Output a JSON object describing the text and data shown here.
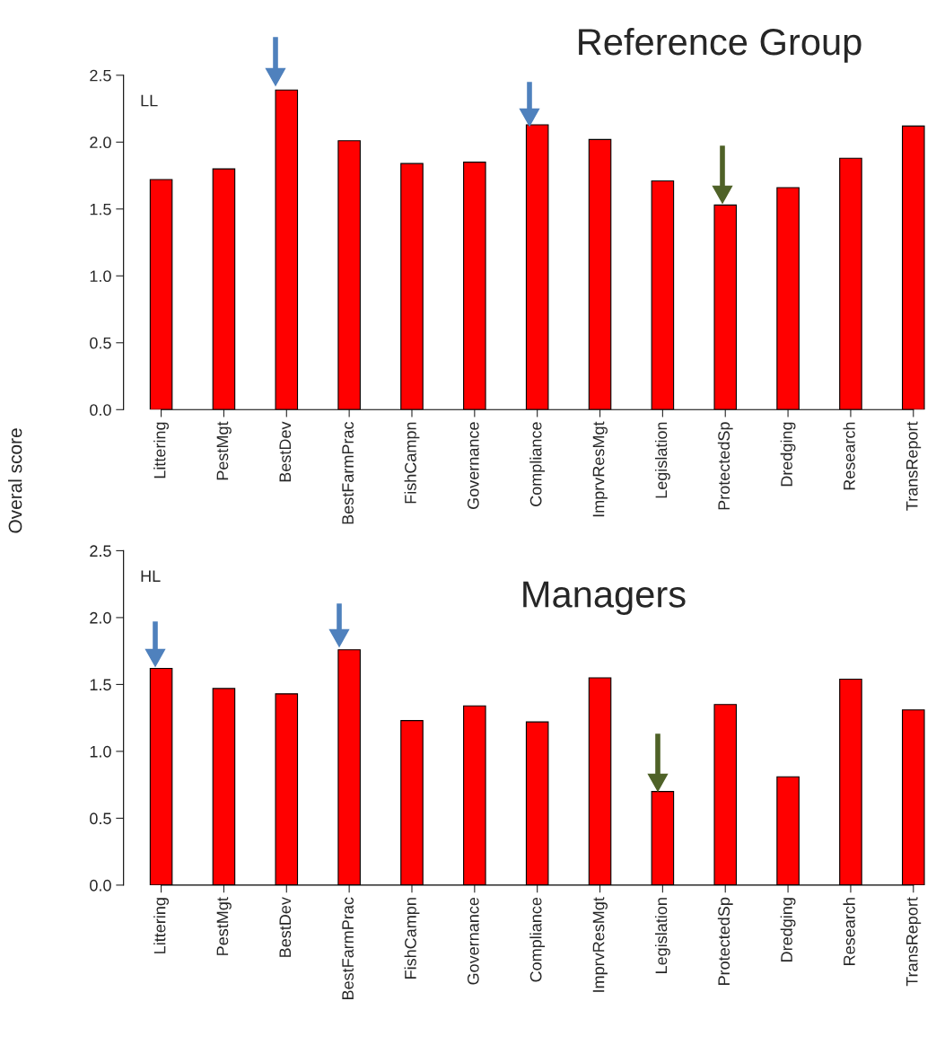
{
  "chart_data": [
    {
      "type": "bar",
      "title": "Reference Group",
      "ylabel": "Overal score",
      "categories": [
        "Littering",
        "PestMgt",
        "BestDev",
        "BestFarmPrac",
        "FishCampn",
        "Governance",
        "Compliance",
        "ImprvResMgt",
        "Legislation",
        "ProtectedSp",
        "Dredging",
        "Research",
        "TransReport"
      ],
      "series": [
        {
          "color": "#ff0000",
          "values": [
            1.72,
            1.8,
            2.39,
            2.01,
            1.84,
            1.85,
            2.13,
            2.02,
            1.71,
            1.53,
            1.66,
            1.88,
            2.12
          ]
        }
      ],
      "ylim": [
        0,
        2.5
      ],
      "yticks": [
        {
          "value": 0,
          "label": "0.0"
        },
        {
          "value": 0.5,
          "label": "0.5"
        },
        {
          "value": 1,
          "label": "1.0"
        },
        {
          "value": 1.5,
          "label": "1.5"
        },
        {
          "value": 2,
          "label": "2.0"
        },
        {
          "value": 2.5,
          "label": "2.5"
        }
      ],
      "grid": false,
      "legend": false,
      "annotations": [
        "LL"
      ]
    },
    {
      "type": "bar",
      "title": "Managers",
      "categories": [
        "Littering",
        "PestMgt",
        "BestDev",
        "BestFarmPrac",
        "FishCampn",
        "Governance",
        "Compliance",
        "ImprvResMgt",
        "Legislation",
        "ProtectedSp",
        "Dredging",
        "Research",
        "TransReport"
      ],
      "series": [
        {
          "color": "#ff0000",
          "values": [
            1.62,
            1.47,
            1.43,
            1.76,
            1.23,
            1.34,
            1.22,
            1.55,
            0.7,
            1.35,
            0.81,
            1.54,
            1.31
          ]
        }
      ],
      "ylim": [
        0,
        2.5
      ],
      "yticks": [
        {
          "value": 0,
          "label": "0.0"
        },
        {
          "value": 0.5,
          "label": "0.5"
        },
        {
          "value": 1,
          "label": "1.0"
        },
        {
          "value": 1.5,
          "label": "1.5"
        },
        {
          "value": 2,
          "label": "2.0"
        },
        {
          "value": 2.5,
          "label": "2.5"
        }
      ],
      "grid": false,
      "legend": false,
      "annotations": [
        "HL"
      ]
    }
  ]
}
